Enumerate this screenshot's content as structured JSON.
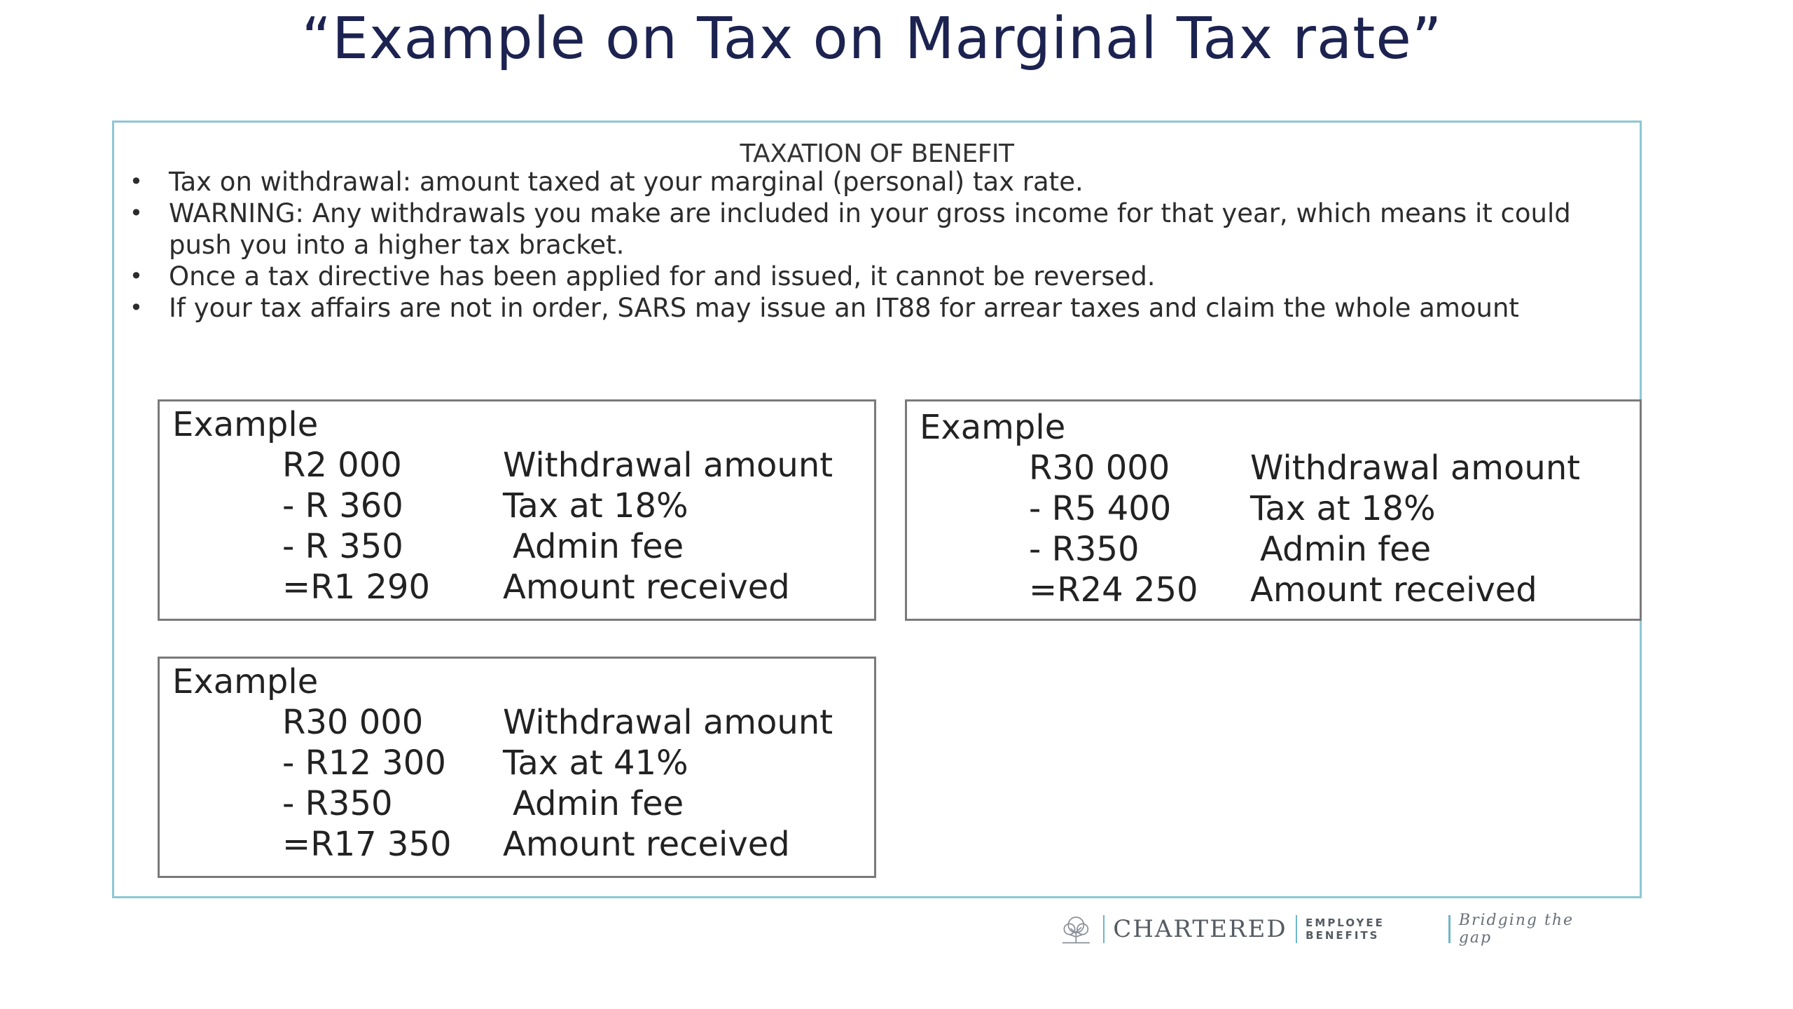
{
  "slide": {
    "title": "“Example on Tax on Marginal Tax rate”"
  },
  "panel": {
    "heading": "TAXATION OF BENEFIT",
    "bullets": [
      "Tax on withdrawal: amount taxed at your marginal (personal) tax rate.",
      "WARNING:   Any withdrawals you make are included in your gross income for that year, which means it could push you into a higher tax bracket.",
      "Once a tax directive has been applied for and issued, it cannot be reversed.",
      "If your tax affairs are not in order, SARS may issue an IT88 for arrear taxes and claim the whole amount"
    ],
    "bullet_symbol": "•"
  },
  "examples": [
    {
      "heading": "Example",
      "rows": [
        {
          "amount": "R2 000",
          "desc": "Withdrawal amount"
        },
        {
          "amount": "- R 360",
          "desc": "Tax at 18%"
        },
        {
          "amount": "- R 350",
          "desc": "Admin fee"
        },
        {
          "amount": "=R1 290",
          "desc": "Amount received"
        }
      ]
    },
    {
      "heading": "Example",
      "rows": [
        {
          "amount": "R30 000",
          "desc": "Withdrawal amount"
        },
        {
          "amount": "- R5 400",
          "desc": "Tax at 18%"
        },
        {
          "amount": "- R350",
          "desc": "Admin fee"
        },
        {
          "amount": "=R24 250",
          "desc": "Amount received"
        }
      ]
    },
    {
      "heading": "Example",
      "rows": [
        {
          "amount": "R30 000",
          "desc": "Withdrawal amount"
        },
        {
          "amount": "- R12 300",
          "desc": "Tax at 41%"
        },
        {
          "amount": "- R350",
          "desc": "Admin fee"
        },
        {
          "amount": "=R17 350",
          "desc": "Amount received"
        }
      ]
    }
  ],
  "footer": {
    "brand": "CHARTERED",
    "subbrand": "EMPLOYEE BENEFITS",
    "tagline": "Bridging the gap",
    "logo_icon": "tree-logo-icon"
  },
  "colors": {
    "title": "#1c2350",
    "panel_border": "#8dc7d3",
    "example_border": "#7a7a7a",
    "footer_separator": "#6fb6c6"
  }
}
